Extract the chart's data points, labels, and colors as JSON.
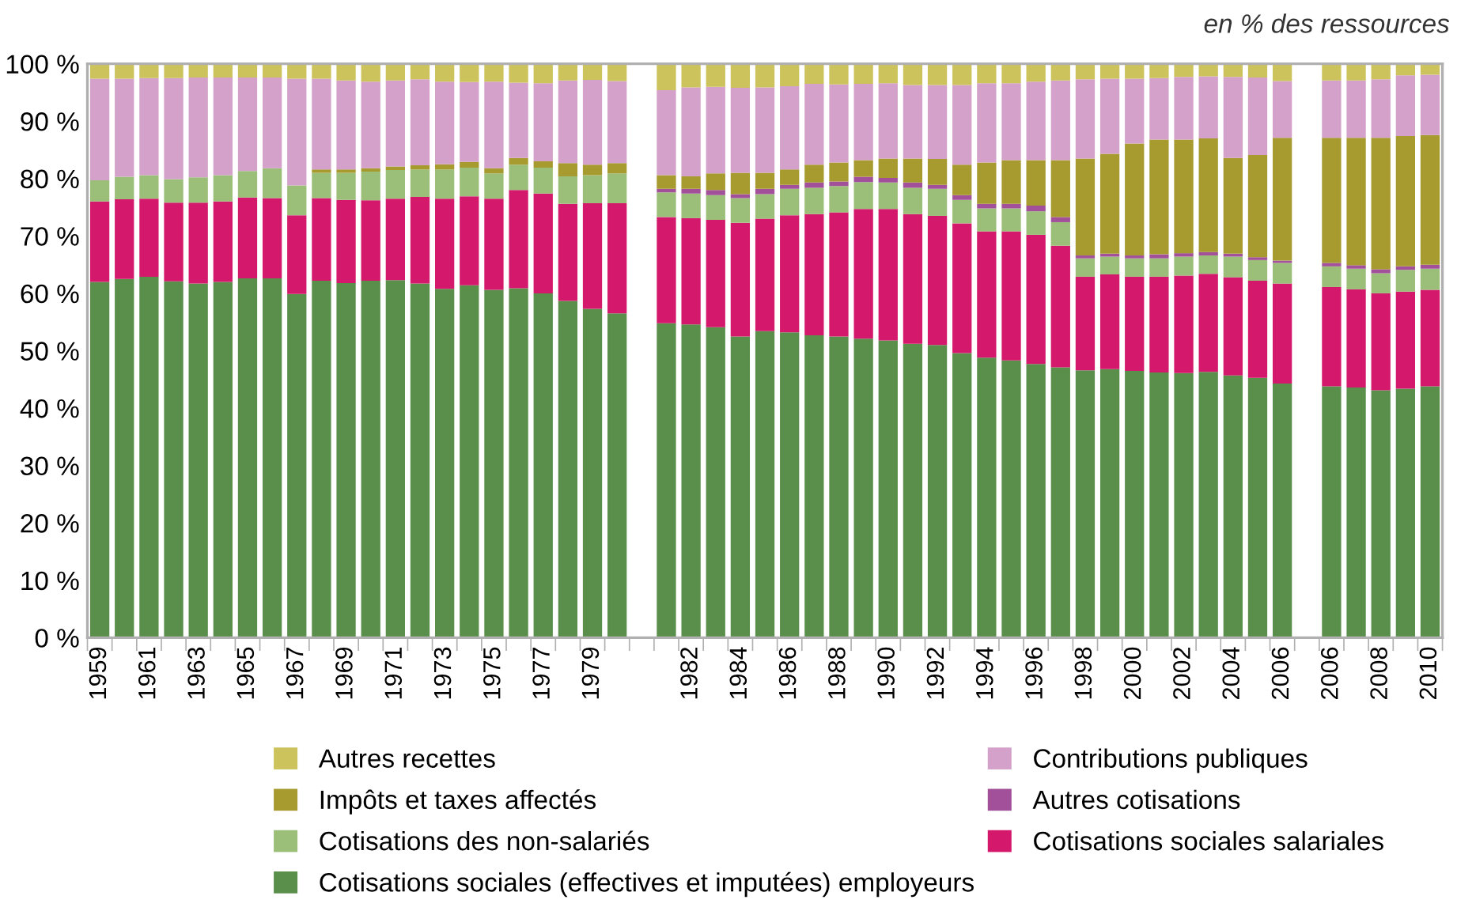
{
  "chart_data": {
    "type": "bar",
    "stacked": true,
    "legend": "bottom",
    "grid": false,
    "annotations": [
      "en % des ressources"
    ],
    "categories": [
      "1959",
      null,
      "1961",
      null,
      "1963",
      null,
      "1965",
      null,
      "1967",
      null,
      "1969",
      null,
      "1971",
      null,
      "1973",
      null,
      "1975",
      null,
      "1977",
      null,
      "1979",
      null,
      null,
      null,
      "1982",
      null,
      "1984",
      null,
      "1986",
      null,
      "1988",
      null,
      "1990",
      null,
      "1992",
      null,
      "1994",
      null,
      "1996",
      null,
      "1998",
      null,
      "2000",
      null,
      "2002",
      null,
      "2004",
      null,
      "2006",
      null,
      "2006",
      null,
      "2008",
      null,
      "2010"
    ],
    "ylim": [
      0,
      100
    ],
    "yticks": [
      {
        "value": 0,
        "label": "0 %"
      },
      {
        "value": 10,
        "label": "10 %"
      },
      {
        "value": 20,
        "label": "20 %"
      },
      {
        "value": 30,
        "label": "30 %"
      },
      {
        "value": 40,
        "label": "40 %"
      },
      {
        "value": 50,
        "label": "50 %"
      },
      {
        "value": 60,
        "label": "60 %"
      },
      {
        "value": 70,
        "label": "70 %"
      },
      {
        "value": 80,
        "label": "80 %"
      },
      {
        "value": 90,
        "label": "90 %"
      },
      {
        "value": 100,
        "label": "100 %"
      }
    ],
    "series": [
      {
        "name": "Cotisations sociales (effectives et imputées) employeurs",
        "color": "#5a8f4b",
        "values": [
          62.0,
          62.5,
          62.9,
          62.1,
          61.7,
          62.0,
          62.6,
          62.6,
          59.9,
          62.2,
          61.8,
          62.2,
          62.3,
          61.7,
          60.8,
          61.4,
          60.6,
          60.9,
          60.0,
          58.7,
          57.3,
          56.5,
          null,
          54.8,
          54.6,
          54.1,
          52.5,
          53.4,
          53.2,
          52.7,
          52.5,
          52.1,
          51.8,
          51.2,
          51.0,
          49.6,
          48.8,
          48.3,
          47.7,
          47.1,
          46.6,
          46.8,
          46.5,
          46.2,
          46.1,
          46.3,
          45.7,
          45.3,
          44.3,
          null,
          43.8,
          43.6,
          43.1,
          43.4,
          43.8
        ]
      },
      {
        "name": "Cotisations sociales salariales",
        "color": "#d4186c",
        "values": [
          14.0,
          13.9,
          13.6,
          13.7,
          14.1,
          14.0,
          14.1,
          14.0,
          13.7,
          14.4,
          14.5,
          14.0,
          14.2,
          15.1,
          15.7,
          15.5,
          15.9,
          17.1,
          17.4,
          16.9,
          18.4,
          19.2,
          null,
          18.5,
          18.5,
          18.7,
          19.8,
          19.6,
          20.4,
          21.1,
          21.6,
          22.6,
          22.9,
          22.6,
          22.5,
          22.6,
          22.0,
          22.5,
          22.5,
          21.2,
          16.3,
          16.5,
          16.4,
          16.7,
          17.0,
          17.1,
          17.1,
          16.9,
          17.4,
          null,
          17.3,
          17.1,
          16.9,
          16.9,
          16.8
        ]
      },
      {
        "name": "Cotisations des non-salariés",
        "color": "#9bbf78",
        "values": [
          3.7,
          3.9,
          4.1,
          4.1,
          4.4,
          4.6,
          4.6,
          5.2,
          5.2,
          4.4,
          4.7,
          5.0,
          5.0,
          4.8,
          5.1,
          5.0,
          4.4,
          4.4,
          4.5,
          4.8,
          4.9,
          5.2,
          null,
          4.3,
          4.3,
          4.3,
          4.3,
          4.3,
          4.6,
          4.6,
          4.6,
          4.7,
          4.6,
          4.6,
          4.7,
          4.1,
          4.0,
          4.0,
          4.1,
          4.1,
          3.2,
          3.1,
          3.2,
          3.2,
          3.3,
          3.2,
          3.6,
          3.6,
          3.6,
          null,
          3.6,
          3.6,
          3.5,
          3.8,
          3.7
        ]
      },
      {
        "name": "Autres cotisations",
        "color": "#a2509a",
        "values": [
          0,
          0,
          0,
          0,
          0,
          0,
          0,
          0,
          0,
          0,
          0,
          0,
          0,
          0,
          0,
          0,
          0,
          0,
          0,
          0,
          0,
          0,
          null,
          0.6,
          0.8,
          0.9,
          0.7,
          0.9,
          0.7,
          0.9,
          0.8,
          0.9,
          0.8,
          0.9,
          0.7,
          0.8,
          0.8,
          0.8,
          1.0,
          0.9,
          0.5,
          0.5,
          0.5,
          0.7,
          0.6,
          0.6,
          0.5,
          0.5,
          0.4,
          null,
          0.6,
          0.6,
          0.7,
          0.6,
          0.7
        ]
      },
      {
        "name": "Impôts et taxes affectés",
        "color": "#a79a2e",
        "values": [
          0,
          0,
          0,
          0,
          0,
          0,
          0,
          0,
          0,
          0.6,
          0.6,
          0.6,
          0.6,
          0.7,
          0.9,
          1.0,
          0.9,
          1.2,
          1.1,
          2.3,
          1.8,
          1.8,
          null,
          2.4,
          2.2,
          2.9,
          3.7,
          2.8,
          2.7,
          3.1,
          3.3,
          2.9,
          3.4,
          4.2,
          4.5,
          5.3,
          7.2,
          7.6,
          7.9,
          9.9,
          16.9,
          17.4,
          19.5,
          20.0,
          19.8,
          19.8,
          16.7,
          17.8,
          21.4,
          null,
          21.8,
          22.2,
          22.9,
          22.7,
          22.6
        ]
      },
      {
        "name": "Contributions publiques",
        "color": "#d3a1c9",
        "values": [
          17.7,
          17.1,
          16.9,
          17.6,
          17.4,
          17.0,
          16.3,
          15.8,
          18.6,
          15.8,
          15.5,
          15.1,
          15.0,
          15.0,
          14.4,
          13.9,
          15.1,
          13.1,
          13.6,
          14.4,
          14.8,
          14.3,
          null,
          14.8,
          15.5,
          15.1,
          14.8,
          14.9,
          14.5,
          14.1,
          13.6,
          13.3,
          13.1,
          12.8,
          12.9,
          13.9,
          13.8,
          13.4,
          13.7,
          13.9,
          13.8,
          13.1,
          11.3,
          10.7,
          10.9,
          10.8,
          14.1,
          13.5,
          9.9,
          null,
          10.0,
          10.0,
          10.2,
          10.6,
          10.5
        ]
      },
      {
        "name": "Autres recettes",
        "color": "#cdc35c",
        "values": [
          2.6,
          2.6,
          2.5,
          2.5,
          2.4,
          2.4,
          2.4,
          2.4,
          2.6,
          2.6,
          2.9,
          3.1,
          3.1,
          2.7,
          3.1,
          3.2,
          3.1,
          3.3,
          3.4,
          2.9,
          2.8,
          3.0,
          null,
          4.6,
          4.1,
          4.0,
          4.2,
          4.1,
          3.9,
          3.5,
          3.6,
          3.5,
          3.4,
          3.7,
          3.7,
          3.7,
          3.4,
          3.4,
          3.1,
          2.9,
          2.7,
          2.6,
          2.6,
          2.5,
          2.3,
          2.2,
          2.3,
          2.4,
          3.0,
          null,
          2.9,
          2.9,
          2.7,
          2.0,
          1.9
        ]
      }
    ]
  }
}
